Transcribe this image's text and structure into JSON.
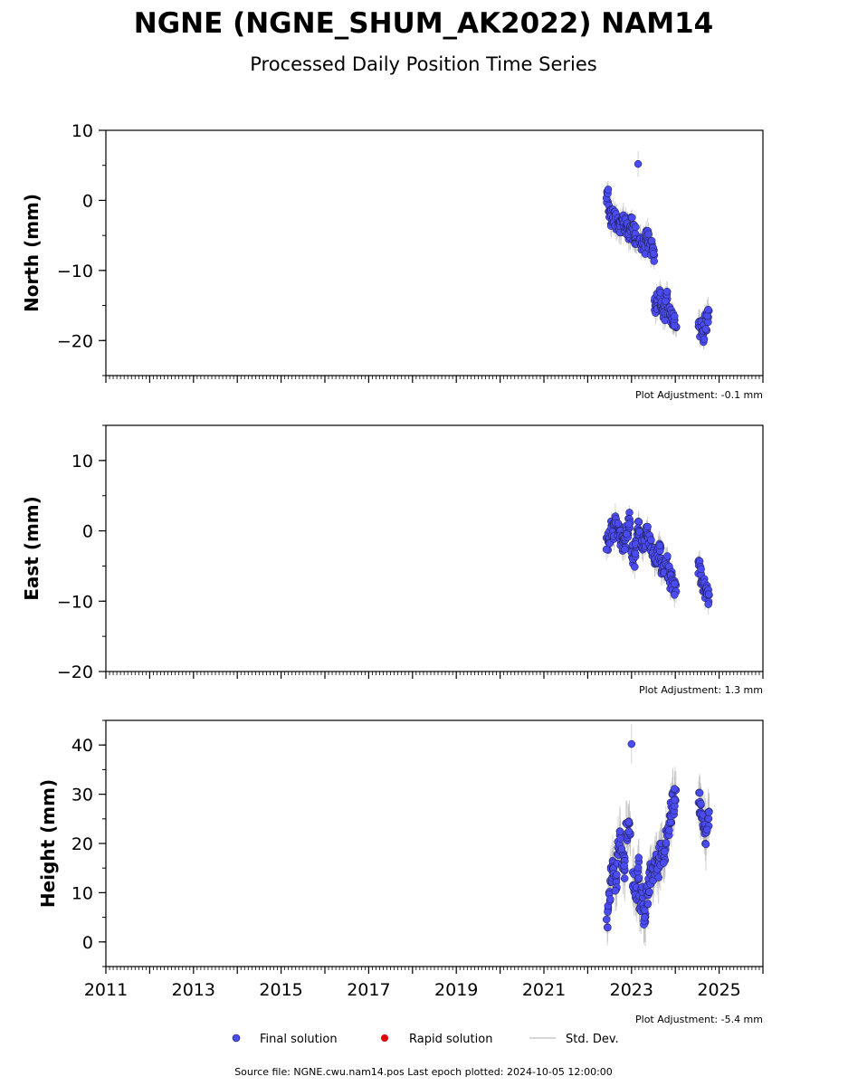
{
  "title": "NGNE (NGNE_SHUM_AK2022) NAM14",
  "subtitle": "Processed Daily Position Time Series",
  "footer": "Source file: NGNE.cwu.nam14.pos  Last epoch plotted: 2024-10-05 12:00:00",
  "legend": {
    "final": "Final solution",
    "rapid": "Rapid solution",
    "stddev": "Std. Dev."
  },
  "colors": {
    "final_fill": "#4b4bf2",
    "final_edge": "#1a1a40",
    "rapid": "#e00000",
    "stddev": "#b0b0b0",
    "axes": "#000000"
  },
  "chart_data": [
    {
      "type": "scatter",
      "panel": "north",
      "ylabel": "North (mm)",
      "xlim": [
        2011,
        2026
      ],
      "ylim": [
        -25,
        10
      ],
      "yticks": [
        10,
        0,
        -10,
        -20
      ],
      "ytick_labels": [
        "10",
        "0",
        "−10",
        "−20"
      ],
      "adjustment": "Plot Adjustment: -0.1 mm",
      "series": [
        {
          "name": "Final solution",
          "x": [
            2022.45,
            2022.5,
            2022.55,
            2022.6,
            2022.65,
            2022.7,
            2022.75,
            2022.8,
            2022.85,
            2022.9,
            2022.95,
            2023.0,
            2023.05,
            2023.1,
            2023.15,
            2023.2,
            2023.25,
            2023.3,
            2023.35,
            2023.4,
            2023.45,
            2023.5,
            2023.55,
            2023.6,
            2023.65,
            2023.7,
            2023.75,
            2023.8,
            2023.85,
            2023.9,
            2023.95,
            2024.0,
            2024.55,
            2024.6,
            2024.65,
            2024.7,
            2024.75
          ],
          "y": [
            0.5,
            -1.5,
            -2.5,
            -2.0,
            -3.0,
            -3.5,
            -4.0,
            -3.0,
            -3.5,
            -4.0,
            -4.5,
            -3.5,
            -4.5,
            -5.0,
            5.2,
            -5.5,
            -6.0,
            -6.5,
            -5.5,
            -6.0,
            -7.0,
            -7.5,
            -15.0,
            -14.5,
            -14.0,
            -15.5,
            -16.0,
            -14.0,
            -16.0,
            -16.5,
            -17.0,
            -17.5,
            -18.5,
            -18.0,
            -19.0,
            -17.5,
            -16.5
          ]
        }
      ]
    },
    {
      "type": "scatter",
      "panel": "east",
      "ylabel": "East (mm)",
      "xlim": [
        2011,
        2026
      ],
      "ylim": [
        -20,
        15
      ],
      "yticks": [
        10,
        0,
        -10,
        -20
      ],
      "ytick_labels": [
        "10",
        "0",
        "−10",
        "−20"
      ],
      "adjustment": "Plot Adjustment: 1.3 mm",
      "series": [
        {
          "name": "Final solution",
          "x": [
            2022.45,
            2022.5,
            2022.55,
            2022.6,
            2022.65,
            2022.7,
            2022.75,
            2022.8,
            2022.85,
            2022.9,
            2022.95,
            2023.0,
            2023.05,
            2023.1,
            2023.15,
            2023.2,
            2023.25,
            2023.3,
            2023.35,
            2023.4,
            2023.45,
            2023.5,
            2023.55,
            2023.6,
            2023.65,
            2023.7,
            2023.75,
            2023.8,
            2023.85,
            2023.9,
            2023.95,
            2024.0,
            2024.55,
            2024.6,
            2024.65,
            2024.7,
            2024.75
          ],
          "y": [
            -1.5,
            -1.0,
            0.5,
            0.0,
            1.0,
            0.0,
            -1.0,
            -2.0,
            -1.5,
            -0.5,
            1.5,
            -3.0,
            -4.0,
            -2.5,
            0.5,
            -1.0,
            -1.5,
            -2.0,
            -0.5,
            -1.5,
            -2.5,
            -3.0,
            -4.0,
            -3.5,
            -3.0,
            -5.0,
            -5.5,
            -4.5,
            -6.0,
            -7.0,
            -7.5,
            -8.0,
            -5.0,
            -6.5,
            -7.5,
            -8.5,
            -9.5
          ]
        }
      ]
    },
    {
      "type": "scatter",
      "panel": "height",
      "ylabel": "Height (mm)",
      "xlim": [
        2011,
        2026
      ],
      "ylim": [
        -5,
        45
      ],
      "yticks": [
        40,
        30,
        20,
        10,
        0
      ],
      "ytick_labels": [
        "40",
        "30",
        "20",
        "10",
        "0"
      ],
      "xticks": [
        2011,
        2013,
        2015,
        2017,
        2019,
        2021,
        2023,
        2025
      ],
      "xtick_labels": [
        "2011",
        "2013",
        "2015",
        "2017",
        "2019",
        "2021",
        "2023",
        "2025"
      ],
      "adjustment": "Plot Adjustment: -5.4 mm",
      "series": [
        {
          "name": "Final solution",
          "x": [
            2022.45,
            2022.5,
            2022.55,
            2022.6,
            2022.65,
            2022.7,
            2022.75,
            2022.8,
            2022.85,
            2022.9,
            2022.95,
            2023.0,
            2023.05,
            2023.1,
            2023.15,
            2023.2,
            2023.25,
            2023.3,
            2023.35,
            2023.4,
            2023.45,
            2023.5,
            2023.55,
            2023.6,
            2023.65,
            2023.7,
            2023.75,
            2023.8,
            2023.85,
            2023.9,
            2023.95,
            2024.0,
            2024.55,
            2024.6,
            2024.65,
            2024.7,
            2024.75
          ],
          "y": [
            5,
            10,
            14,
            16,
            12,
            18,
            20,
            17,
            15,
            22,
            24,
            40.2,
            12,
            10,
            15,
            8,
            9,
            6,
            10,
            12,
            14,
            13,
            16,
            15,
            18,
            20,
            18,
            22,
            24,
            26,
            28,
            30,
            28,
            26,
            24,
            22,
            25
          ]
        }
      ]
    }
  ]
}
